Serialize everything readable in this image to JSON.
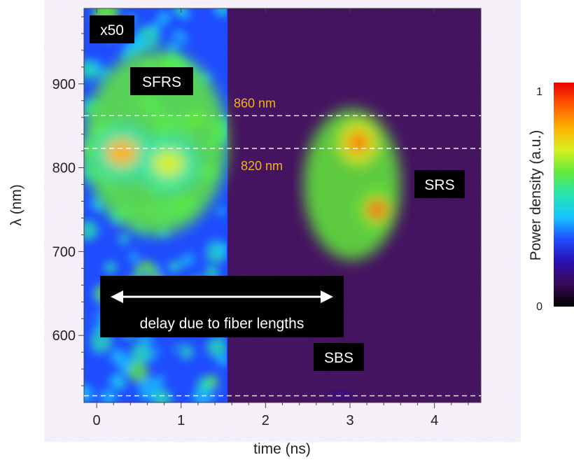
{
  "chart_data": {
    "type": "heatmap",
    "title": "",
    "xlabel": "time (ns)",
    "ylabel": "λ (nm)",
    "xlim": [
      -0.15,
      4.55
    ],
    "ylim": [
      520,
      990
    ],
    "x_ticks": [
      0,
      1,
      2,
      3,
      4
    ],
    "y_ticks": [
      600,
      700,
      800,
      900
    ],
    "colorbar": {
      "label": "Power density (a.u.)",
      "min": 0,
      "max": 1,
      "min_label": "0",
      "max_label": "1",
      "colormap": [
        "#000000",
        "#3a0a55",
        "#2a0fb0",
        "#1f4cff",
        "#17c6ff",
        "#25e4b0",
        "#62ea3a",
        "#d8f020",
        "#ffb000",
        "#ff5a00",
        "#e80000"
      ]
    },
    "amplified_region": {
      "x_range": [
        -0.15,
        1.55
      ],
      "label": "x50"
    },
    "horizontal_lines": [
      {
        "y": 862,
        "label": "860 nm"
      },
      {
        "y": 823,
        "label": "820 nm"
      },
      {
        "y": 528,
        "label": ""
      }
    ],
    "features": [
      {
        "name": "SFRS",
        "x_range": [
          -0.15,
          1.55
        ],
        "y_range": [
          720,
          940
        ],
        "peaks": [
          {
            "x": 0.3,
            "y": 818,
            "level": 0.75
          },
          {
            "x": 0.85,
            "y": 805,
            "level": 0.7
          }
        ],
        "level": 0.55
      },
      {
        "name": "SRS",
        "x_range": [
          2.45,
          3.6
        ],
        "y_range": [
          690,
          870
        ],
        "peaks": [
          {
            "x": 3.1,
            "y": 830,
            "level": 0.93
          },
          {
            "x": 3.32,
            "y": 750,
            "level": 0.85
          }
        ],
        "level": 0.6
      },
      {
        "name": "SBS",
        "x_range": [
          2.75,
          3.05
        ],
        "y_range": [
          524,
          534
        ],
        "level": 0.2
      }
    ],
    "annotations": [
      {
        "text": "x50",
        "type": "box"
      },
      {
        "text": "SFRS",
        "type": "box"
      },
      {
        "text": "SRS",
        "type": "box"
      },
      {
        "text": "SBS",
        "type": "box"
      },
      {
        "text": "delay due to fiber lengths",
        "type": "box-arrow"
      }
    ],
    "colors": {
      "background_low": "#3a0a55",
      "label_box": "#000000",
      "wavelength_label": "#f2b31a",
      "dashed_line": "#ffffff"
    }
  }
}
